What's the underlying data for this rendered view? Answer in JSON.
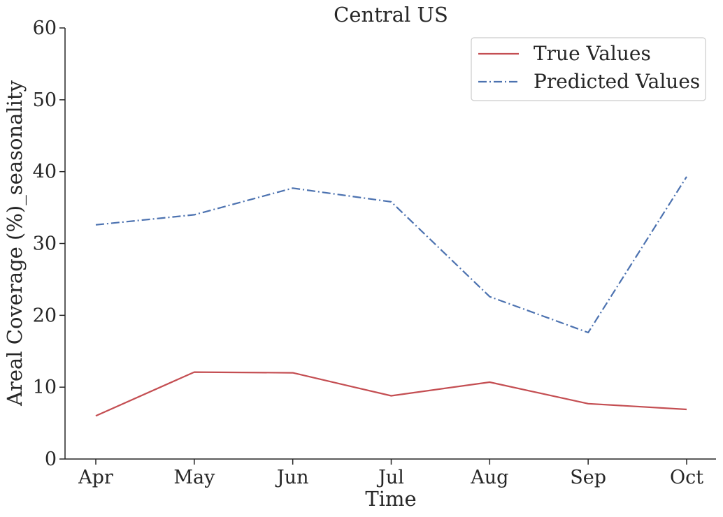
{
  "chart_data": {
    "type": "line",
    "title": "Central US",
    "xlabel": "Time",
    "ylabel": "Areal Coverage (%)_seasonality",
    "categories": [
      "Apr",
      "May",
      "Jun",
      "Jul",
      "Aug",
      "Sep",
      "Oct"
    ],
    "ylim": [
      0,
      60
    ],
    "yticks": [
      0,
      10,
      20,
      30,
      40,
      50,
      60
    ],
    "grid": false,
    "legend_position": "top-right",
    "series": [
      {
        "name": "True Values",
        "color": "#c44e52",
        "line_style": "solid",
        "values": [
          6.0,
          12.1,
          12.0,
          8.8,
          10.7,
          7.7,
          6.9
        ]
      },
      {
        "name": "Predicted Values",
        "color": "#4c72b0",
        "line_style": "dashdot",
        "values": [
          32.6,
          34.0,
          37.7,
          35.8,
          22.6,
          17.6,
          39.3
        ]
      }
    ]
  }
}
